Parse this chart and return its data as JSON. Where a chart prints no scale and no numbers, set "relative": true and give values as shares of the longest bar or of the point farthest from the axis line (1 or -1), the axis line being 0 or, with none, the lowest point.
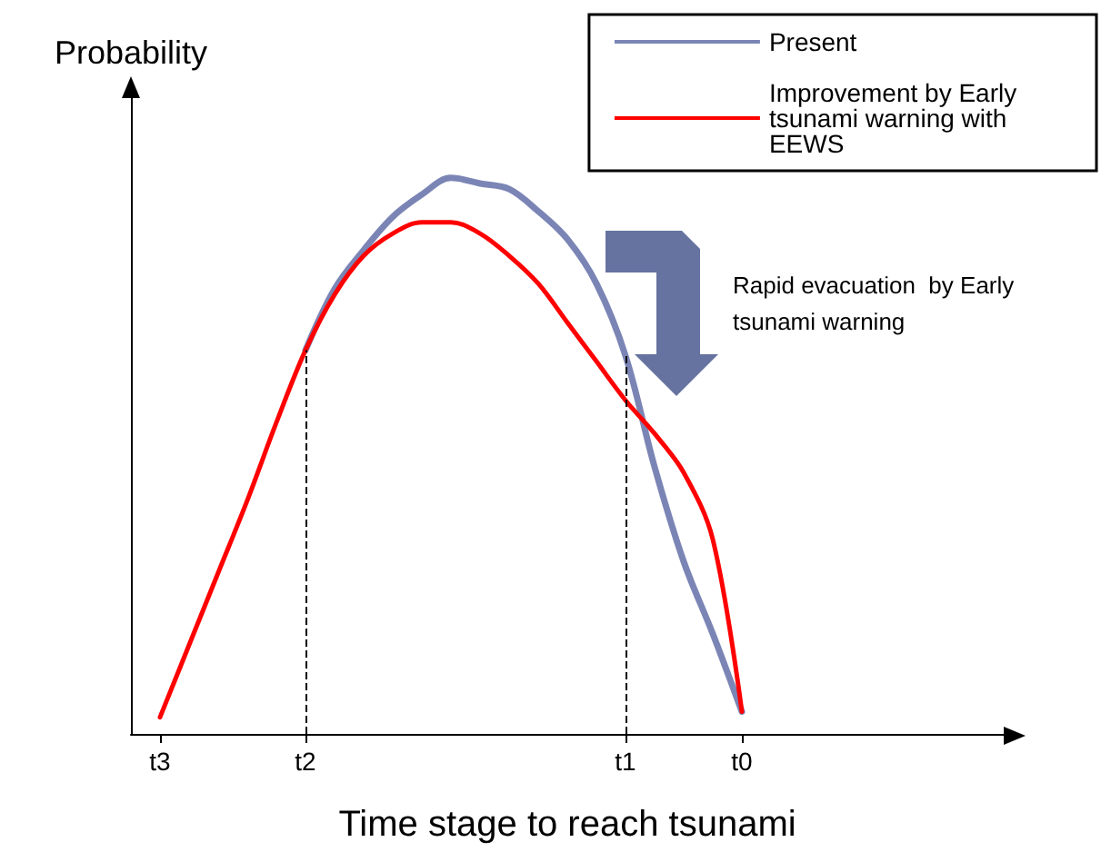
{
  "chart_data": {
    "type": "line",
    "relative": true,
    "xlabel": "Time stage to reach tsunami",
    "ylabel": "Probability",
    "categories": [
      null,
      "t3",
      null,
      null,
      null,
      null,
      "t2",
      null,
      null,
      null,
      null,
      null,
      null,
      null,
      null,
      null,
      null,
      "t1",
      null,
      null,
      null,
      "t0",
      null,
      null,
      null,
      null,
      null,
      null,
      null,
      null,
      null
    ],
    "legend": "top right",
    "grid": false,
    "marker": "none",
    "annotations": [
      "Rapid evacuation  by Early tsunami warning"
    ],
    "ref_lines": [
      {
        "axis": "x",
        "value": "t2",
        "line_style": "dashed",
        "color": "#000000"
      },
      {
        "axis": "x",
        "value": "t1",
        "line_style": "dashed",
        "color": "#000000"
      }
    ],
    "series": [
      {
        "name": "Present",
        "color": "#7b85b5",
        "values": [
          null,
          null,
          null,
          null,
          null,
          null,
          0.69,
          0.8,
          0.87,
          0.93,
          0.97,
          1,
          0.99,
          0.98,
          0.94,
          0.89,
          0.81,
          0.68,
          0.48,
          0.31,
          0.18,
          0.04,
          null,
          null,
          null,
          null,
          null,
          null,
          null,
          null,
          null
        ]
      },
      {
        "name": "Improvement by Early tsunami warning with EEWS",
        "color": "#ff0000",
        "values": [
          null,
          0.03,
          0.16,
          0.29,
          0.42,
          0.56,
          0.69,
          0.79,
          0.86,
          0.9,
          0.92,
          0.92,
          0.9,
          0.86,
          0.81,
          0.74,
          0.67,
          0.6,
          0.54,
          0.47,
          0.35,
          0.04,
          null,
          null,
          null,
          null,
          null,
          null,
          null,
          null,
          null
        ]
      }
    ]
  }
}
